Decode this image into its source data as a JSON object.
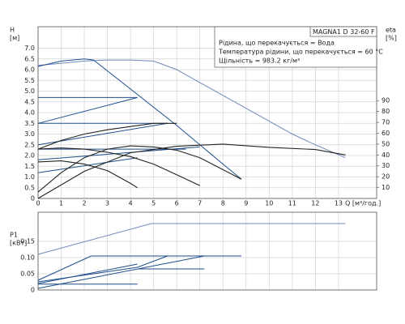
{
  "chart_data": [
    {
      "type": "line",
      "info_title": "MAGNA1 D 32-60 F",
      "info": [
        "Рідина, що перекачується = Вода",
        "Температура рідини, що перекачується = 60 °C",
        "Щільність = 983.2 кг/м³"
      ],
      "y_label": "H",
      "y_unit": "[м]",
      "y2_label": "eta",
      "y2_unit": "[%]",
      "x_label": "Q [м³/год.]",
      "xlim": [
        0,
        14.65
      ],
      "xticks": [
        0,
        1,
        2,
        3,
        4,
        5,
        6,
        7,
        8,
        9,
        10,
        11,
        12,
        13
      ],
      "ylim": [
        0,
        8
      ],
      "yticks": [
        0,
        0.5,
        {
          "value": 1,
          "label": "1.0"
        },
        1.5,
        {
          "value": 2,
          "label": "2.0"
        },
        2.5,
        {
          "value": 3,
          "label": "3.0"
        },
        3.5,
        {
          "value": 4,
          "label": "4.0"
        },
        4.5,
        {
          "value": 5,
          "label": "5.0"
        },
        5.5,
        {
          "value": 6,
          "label": "6.0"
        },
        6.5,
        {
          "value": 7,
          "label": "7.0"
        }
      ],
      "y2lim": [
        0,
        158
      ],
      "y2ticks": [
        10,
        20,
        30,
        40,
        50,
        60,
        70,
        80,
        90
      ],
      "grid": true,
      "series": [
        {
          "color": "#7088b8",
          "x": [
            0,
            1,
            2,
            3,
            4,
            5,
            6,
            7,
            8,
            9,
            10,
            11,
            12,
            13.3
          ],
          "values": [
            6.2,
            6.3,
            6.4,
            6.45,
            6.45,
            6.4,
            6.0,
            5.4,
            4.8,
            4.2,
            3.6,
            3.0,
            2.5,
            1.9
          ]
        },
        {
          "color": "#1f4e8c",
          "x": [
            0,
            1,
            2,
            2.4,
            4,
            6,
            8,
            8.8
          ],
          "values": [
            6.15,
            6.4,
            6.5,
            6.45,
            5.1,
            3.4,
            1.6,
            0.9
          ]
        },
        {
          "color": "#1f4e8c",
          "x": [
            0,
            4.3
          ],
          "values": [
            4.7,
            4.7
          ]
        },
        {
          "color": "#1f4e8c",
          "x": [
            0,
            5.6
          ],
          "values": [
            3.5,
            3.5
          ]
        },
        {
          "color": "#1f4e8c",
          "x": [
            0,
            6.4
          ],
          "values": [
            2.3,
            2.3
          ]
        },
        {
          "color": "#1f4e8c",
          "x": [
            0,
            4.3
          ],
          "values": [
            3.5,
            4.7
          ]
        },
        {
          "color": "#1f4e8c",
          "x": [
            0,
            5.6
          ],
          "values": [
            2.5,
            3.5
          ]
        },
        {
          "color": "#1f4e8c",
          "x": [
            0,
            7.0
          ],
          "values": [
            1.8,
            2.4
          ]
        },
        {
          "color": "#1f4e8c",
          "x": [
            0,
            4.3
          ],
          "values": [
            1.2,
            1.9
          ]
        },
        {
          "color": "#222222",
          "x": [
            0,
            1,
            2,
            3,
            4,
            4.3
          ],
          "values": [
            1.7,
            1.75,
            1.6,
            1.3,
            0.7,
            0.5
          ]
        },
        {
          "color": "#222222",
          "x": [
            0,
            1,
            2,
            3,
            4,
            5,
            6,
            7
          ],
          "values": [
            2.3,
            2.35,
            2.3,
            2.15,
            1.95,
            1.6,
            1.1,
            0.6
          ]
        },
        {
          "color": "#222222",
          "x": [
            0,
            1,
            2,
            3,
            4,
            5,
            6,
            7,
            8.8
          ],
          "values": [
            0.3,
            1.2,
            1.9,
            2.3,
            2.45,
            2.4,
            2.25,
            1.9,
            0.9
          ]
        },
        {
          "color": "#222222",
          "x": [
            0,
            1,
            2,
            3,
            4,
            5,
            6
          ],
          "values": [
            2.3,
            2.7,
            3.0,
            3.2,
            3.35,
            3.5,
            3.5
          ]
        },
        {
          "color": "#222222",
          "axis": "y2",
          "x": [
            0,
            2,
            4,
            6,
            8,
            10,
            12,
            13.3
          ],
          "values": [
            0,
            25,
            42,
            48,
            50,
            47,
            45,
            40
          ]
        }
      ]
    },
    {
      "type": "line",
      "y_label": "P1",
      "y_unit": "[кВт]",
      "xlim": [
        0,
        14.65
      ],
      "xticks": [
        0,
        1,
        2,
        3,
        4,
        5,
        6,
        7,
        8,
        9,
        10,
        11,
        12,
        13
      ],
      "ylim": [
        0,
        0.24
      ],
      "yticks": [
        0,
        0.05,
        {
          "value": 0.1,
          "label": "0.10"
        },
        0.15
      ],
      "grid": true,
      "series": [
        {
          "color": "#7088b8",
          "x": [
            0,
            4.9,
            13.3
          ],
          "values": [
            0.11,
            0.205,
            0.205
          ]
        },
        {
          "color": "#1f4e8c",
          "x": [
            2.3,
            8.8
          ],
          "values": [
            0.105,
            0.105
          ]
        },
        {
          "color": "#1f4e8c",
          "x": [
            0,
            2.3
          ],
          "values": [
            0.03,
            0.105
          ]
        },
        {
          "color": "#1f4e8c",
          "x": [
            0,
            4.3,
            5.6
          ],
          "values": [
            0.025,
            0.07,
            0.105
          ]
        },
        {
          "color": "#1f4e8c",
          "x": [
            0,
            4.3
          ],
          "values": [
            0.02,
            0.08
          ]
        },
        {
          "color": "#1f4e8c",
          "x": [
            0,
            7.2
          ],
          "values": [
            0.005,
            0.105
          ]
        },
        {
          "color": "#1f4e8c",
          "x": [
            0,
            4.3
          ],
          "values": [
            0.018,
            0.018
          ]
        },
        {
          "color": "#1f4e8c",
          "x": [
            4.3,
            7.2
          ],
          "values": [
            0.065,
            0.065
          ]
        }
      ]
    }
  ]
}
